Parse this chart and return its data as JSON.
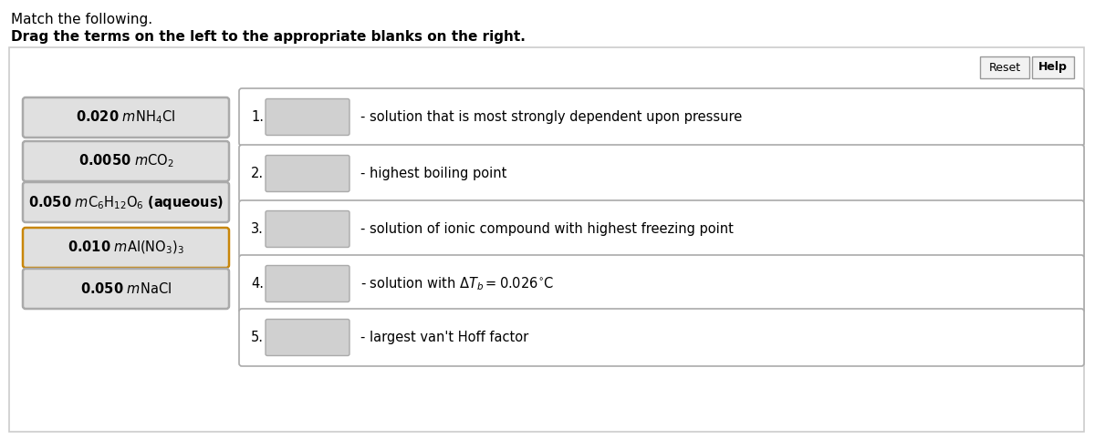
{
  "title1": "Match the following.",
  "title2": "Drag the terms on the left to the appropriate blanks on the right.",
  "bg_color": "#ffffff",
  "outer_box_facecolor": "#ffffff",
  "outer_box_edge": "#cccccc",
  "left_terms_math": [
    "$\\mathbf{0.020}$ $m\\mathrm{NH_4Cl}$",
    "$\\mathbf{0.0050}$ $m\\mathrm{CO_2}$",
    "$\\mathbf{0.050}$ $m\\mathrm{C_6H_{12}O_6}$ $\\mathbf{(aqueous)}$",
    "$\\mathbf{0.010}$ $m\\mathrm{Al(NO_3)_3}$",
    "$\\mathbf{0.050}$ $m\\mathrm{NaCl}$"
  ],
  "left_box_facecolor": "#e0e0e0",
  "left_box_edges": [
    "#aaaaaa",
    "#aaaaaa",
    "#aaaaaa",
    "#c8860a",
    "#aaaaaa"
  ],
  "right_labels": [
    "1.",
    "2.",
    "3.",
    "4.",
    "5."
  ],
  "right_texts": [
    "- solution that is most strongly dependent upon pressure",
    "- highest boiling point",
    "- solution of ionic compound with highest freezing point",
    "- solution with $\\Delta T_b = 0.026^{\\circ}\\mathrm{C}$",
    "- largest van't Hoff factor"
  ],
  "right_box_facecolor": "#ffffff",
  "right_box_edge": "#aaaaaa",
  "blank_box_facecolor": "#d0d0d0",
  "blank_box_edge": "#aaaaaa",
  "button_reset": "Reset",
  "button_help": "Help",
  "button_facecolor": "#f2f2f2",
  "button_edge": "#999999"
}
